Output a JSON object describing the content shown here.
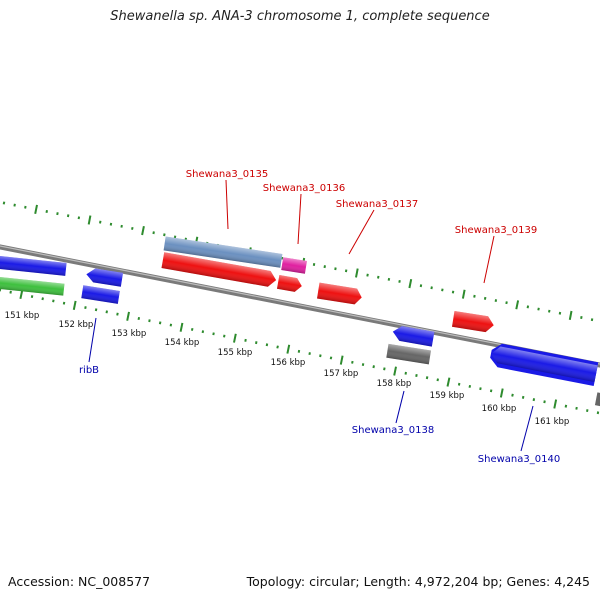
{
  "title": "Shewanella sp. ANA-3 chromosome 1, complete sequence",
  "footer": {
    "accession": "Accession: NC_008577",
    "summary": "Topology: circular; Length: 4,972,204 bp; Genes: 4,245"
  },
  "map": {
    "colors": {
      "backbone": "#8a8a8a",
      "red_gene": "#ee1111",
      "blue_gene": "#1a1ae6",
      "steel_gene": "#6b90c0",
      "magenta_gene": "#e020a0",
      "grey_gene": "#666666",
      "green_gene": "#3ec03e",
      "tick": "#2e8b2e",
      "label_red": "#cc0000",
      "label_blue": "#0000aa"
    },
    "scale_labels": [
      "151 kbp",
      "152 kbp",
      "153 kbp",
      "154 kbp",
      "155 kbp",
      "156 kbp",
      "157 kbp",
      "158 kbp",
      "159 kbp",
      "160 kbp",
      "161 kbp"
    ],
    "gene_labels": {
      "sh0135": "Shewana3_0135",
      "sh0136": "Shewana3_0136",
      "sh0137": "Shewana3_0137",
      "sh0139": "Shewana3_0139",
      "ribB": "ribB",
      "sh0138": "Shewana3_0138",
      "sh0140": "Shewana3_0140"
    }
  }
}
